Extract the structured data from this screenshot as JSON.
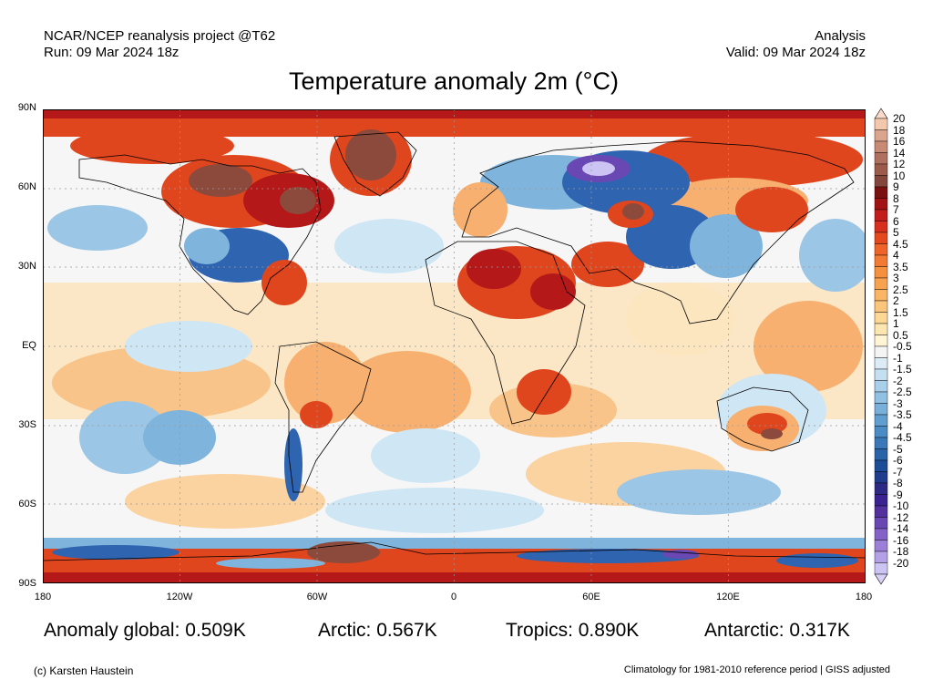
{
  "header": {
    "left_line1": "NCAR/NCEP reanalysis project @T62",
    "left_line2": "Run: 09 Mar 2024 18z",
    "right_line1": "Analysis",
    "right_line2": "Valid: 09 Mar 2024 18z"
  },
  "title": "Temperature anomaly 2m (°C)",
  "lat_labels": [
    "90N",
    "60N",
    "30N",
    "EQ",
    "30S",
    "60S",
    "90S"
  ],
  "lon_labels": [
    "180",
    "120W",
    "60W",
    "0",
    "60E",
    "120E",
    "180"
  ],
  "colorbar": {
    "labels": [
      "20",
      "18",
      "16",
      "14",
      "12",
      "10",
      "9",
      "8",
      "7",
      "6",
      "5",
      "4.5",
      "4",
      "3.5",
      "3",
      "2.5",
      "2",
      "1.5",
      "1",
      "0.5",
      "-0.5",
      "-1",
      "-1.5",
      "-2",
      "-2.5",
      "-3",
      "-3.5",
      "-4",
      "-4.5",
      "-5",
      "-6",
      "-7",
      "-8",
      "-9",
      "-10",
      "-12",
      "-14",
      "-16",
      "-18",
      "-20"
    ],
    "colors": [
      "#f4c8ac",
      "#dba48c",
      "#c88a74",
      "#b07060",
      "#9c5a4a",
      "#84463a",
      "#7a1010",
      "#a21212",
      "#c21c1c",
      "#d8301e",
      "#e6481e",
      "#ef6428",
      "#f27a32",
      "#f5903e",
      "#f7a24e",
      "#f9b464",
      "#fbc67c",
      "#fcd894",
      "#fde6b0",
      "#fff4d4",
      "#f4f4f4",
      "#dcecf6",
      "#c4e0f0",
      "#a8d0ea",
      "#90c0e2",
      "#78b0da",
      "#609ed0",
      "#4c8cc6",
      "#3a78b8",
      "#2a64a8",
      "#1c4e98",
      "#203c8c",
      "#2c2a84",
      "#3a2290",
      "#52309e",
      "#6a48b4",
      "#8462c8",
      "#9c80d8",
      "#b4a0e6",
      "#ccc4f2"
    ],
    "cap_top": "#f9dac8",
    "cap_bottom": "#d8d0f6"
  },
  "stats": [
    {
      "label": "Anomaly global:",
      "value": "0.509K"
    },
    {
      "label": "Arctic:",
      "value": "0.567K"
    },
    {
      "label": "Tropics:",
      "value": "0.890K"
    },
    {
      "label": "Antarctic:",
      "value": "0.317K"
    }
  ],
  "footer": {
    "left": "(c) Karsten Haustein",
    "right": "Climatology for 1981-2010 reference period | GISS adjusted"
  },
  "map_colors": {
    "neutral": "#f6f6f6",
    "warm_light": "#fce6c0",
    "warm_mid": "#f7b070",
    "warm_strong": "#e0461e",
    "warm_extreme": "#b41818",
    "hot_brown": "#8c4a3c",
    "cool_light": "#cfe6f4",
    "cool_mid": "#7fb4dc",
    "cool_strong": "#2f64b0",
    "cold_purple": "#6a48b4",
    "coast": "#000000",
    "grid": "#999999"
  }
}
